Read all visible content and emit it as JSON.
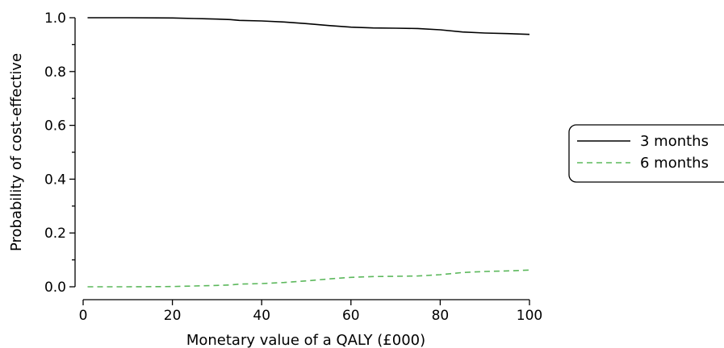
{
  "chart_data": {
    "type": "line",
    "xlabel": "Monetary value of a QALY (£000)",
    "ylabel": "Probability of cost-effective",
    "xlim": [
      0,
      100
    ],
    "ylim": [
      0,
      1.0
    ],
    "x_ticks": [
      0,
      20,
      40,
      60,
      80,
      100
    ],
    "y_ticks": [
      0.0,
      0.2,
      0.4,
      0.6,
      0.8,
      1.0
    ],
    "x_tick_labels": [
      "0",
      "20",
      "40",
      "60",
      "80",
      "100"
    ],
    "y_tick_labels": [
      "0.0",
      "0.2",
      "0.4",
      "0.6",
      "0.8",
      "1.0"
    ],
    "y_minor_ticks": [
      0.1,
      0.3,
      0.5,
      0.7,
      0.9
    ],
    "grid": false,
    "legend_position": "right",
    "series": [
      {
        "name": "3 months",
        "color": "#000000",
        "style": "solid",
        "points": [
          [
            1,
            1.0
          ],
          [
            10,
            1.0
          ],
          [
            20,
            0.999
          ],
          [
            25,
            0.997
          ],
          [
            30,
            0.995
          ],
          [
            33,
            0.993
          ],
          [
            35,
            0.99
          ],
          [
            40,
            0.988
          ],
          [
            45,
            0.984
          ],
          [
            50,
            0.978
          ],
          [
            55,
            0.971
          ],
          [
            60,
            0.965
          ],
          [
            65,
            0.962
          ],
          [
            70,
            0.961
          ],
          [
            75,
            0.96
          ],
          [
            80,
            0.955
          ],
          [
            85,
            0.947
          ],
          [
            90,
            0.943
          ],
          [
            95,
            0.941
          ],
          [
            100,
            0.938
          ]
        ]
      },
      {
        "name": "6 months",
        "color": "#5cb85c",
        "style": "dashed",
        "points": [
          [
            1,
            0.0
          ],
          [
            10,
            0.0
          ],
          [
            20,
            0.001
          ],
          [
            25,
            0.003
          ],
          [
            30,
            0.005
          ],
          [
            33,
            0.007
          ],
          [
            35,
            0.01
          ],
          [
            40,
            0.012
          ],
          [
            45,
            0.016
          ],
          [
            50,
            0.022
          ],
          [
            55,
            0.029
          ],
          [
            60,
            0.035
          ],
          [
            65,
            0.038
          ],
          [
            70,
            0.039
          ],
          [
            75,
            0.04
          ],
          [
            80,
            0.045
          ],
          [
            85,
            0.053
          ],
          [
            90,
            0.057
          ],
          [
            95,
            0.059
          ],
          [
            100,
            0.062
          ]
        ]
      }
    ]
  }
}
